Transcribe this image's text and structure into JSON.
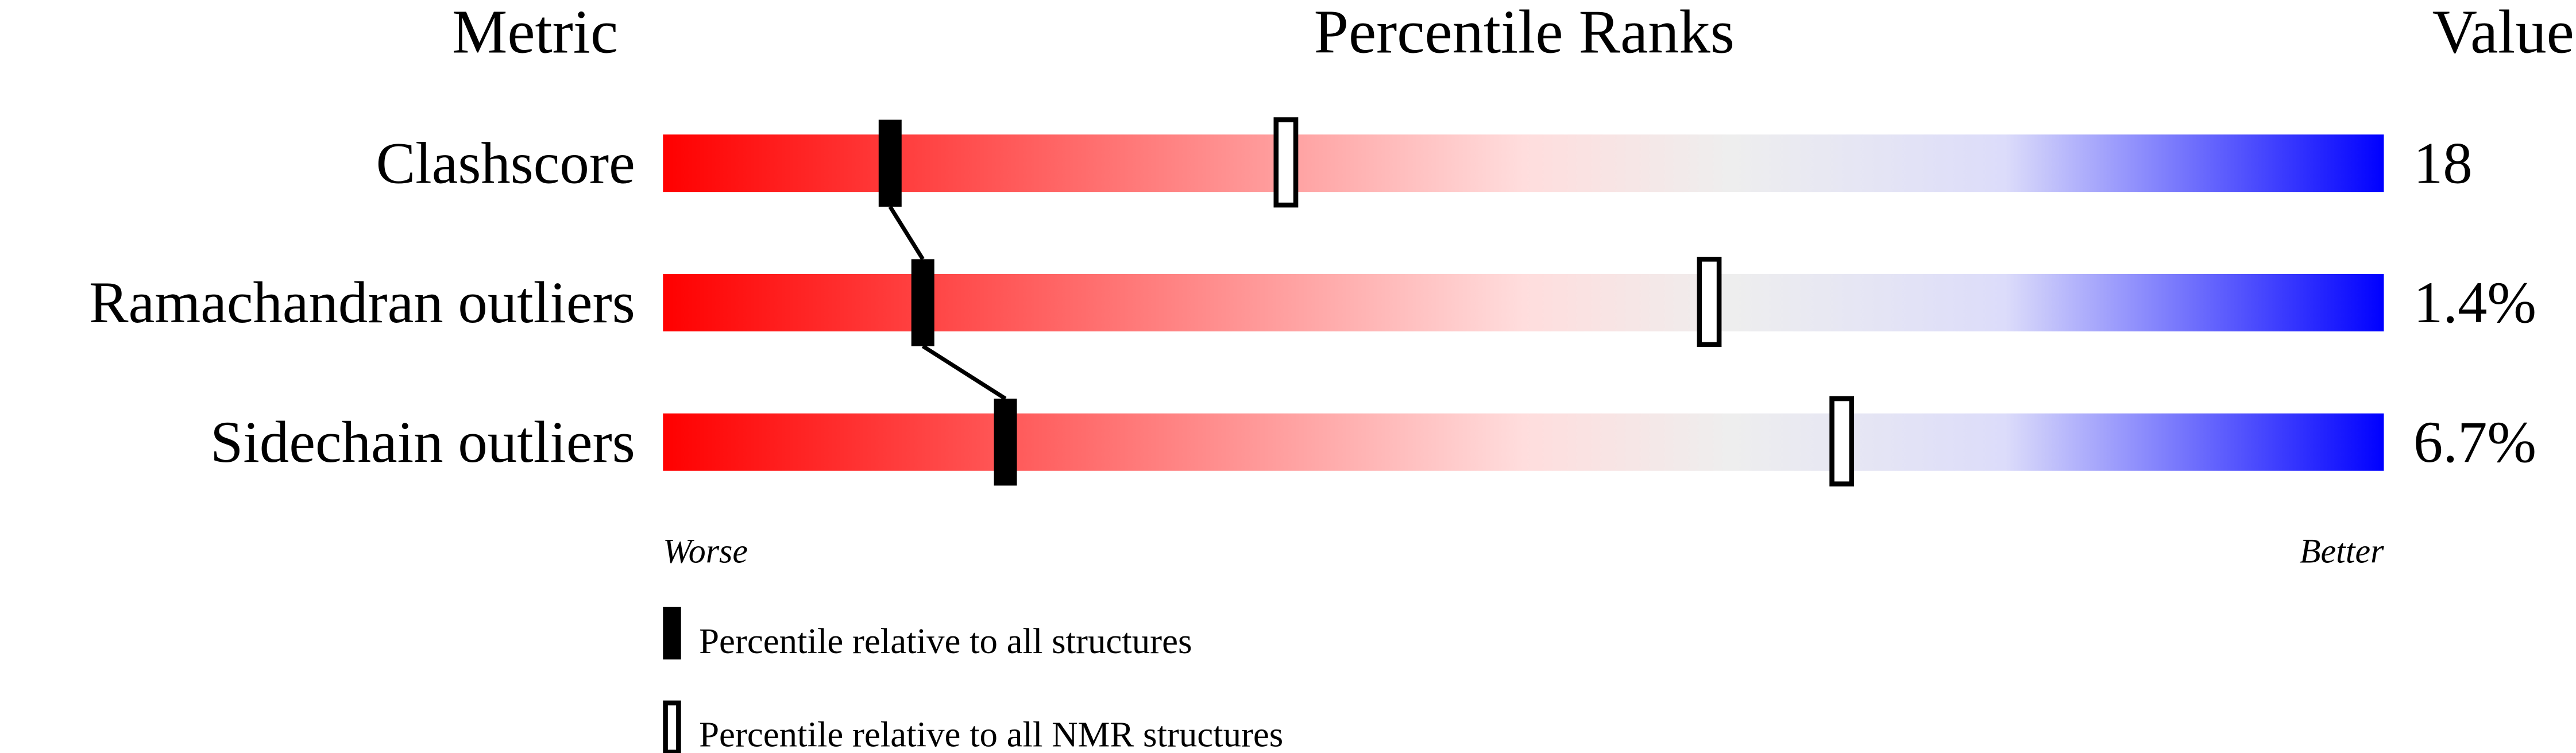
{
  "chart_data": {
    "type": "bar",
    "headers": {
      "metric": "Metric",
      "ranks": "Percentile Ranks",
      "value": "Value"
    },
    "xlim": [
      0,
      100
    ],
    "axis_labels": {
      "left": "Worse",
      "right": "Better"
    },
    "gradient_colors": [
      "#ff0000",
      "#eeeeee",
      "#0000ff"
    ],
    "rows": [
      {
        "metric": "Clashscore",
        "value": "18",
        "percentile_all": 13.2,
        "percentile_nmr": 36.2
      },
      {
        "metric": "Ramachandran outliers",
        "value": "1.4%",
        "percentile_all": 15.1,
        "percentile_nmr": 60.8
      },
      {
        "metric": "Sidechain outliers",
        "value": "6.7%",
        "percentile_all": 19.9,
        "percentile_nmr": 68.5
      }
    ],
    "series": [
      {
        "name": "Percentile relative to all structures",
        "marker": "filled"
      },
      {
        "name": "Percentile relative to all NMR structures",
        "marker": "hollow"
      }
    ]
  }
}
